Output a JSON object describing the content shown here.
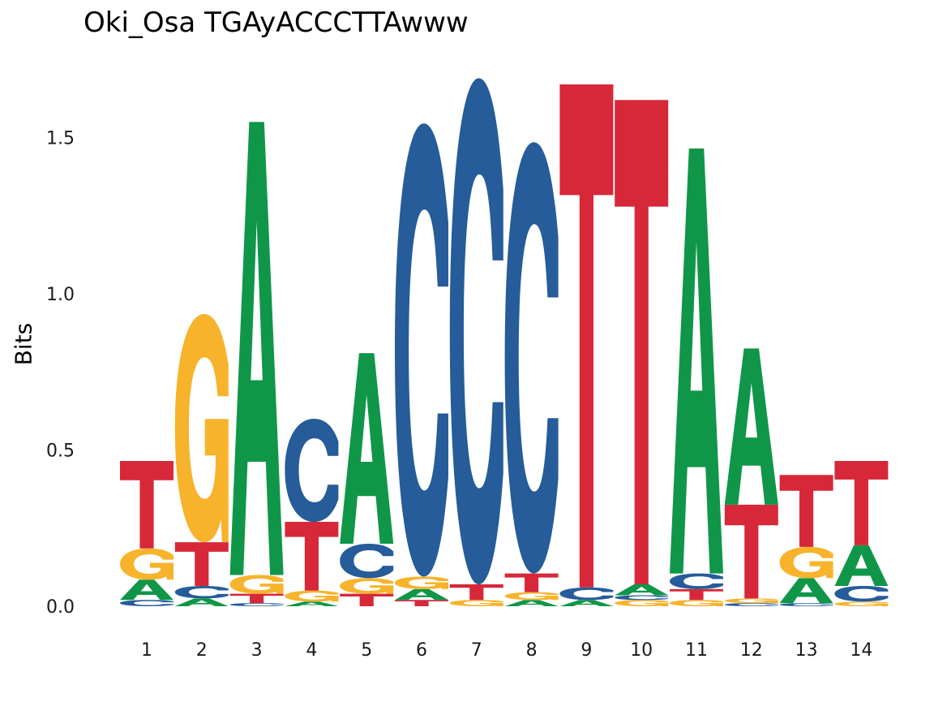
{
  "title": "Oki_Osa TGAyACCCTTAwww",
  "chart_data": {
    "type": "sequence-logo",
    "title": "Oki_Osa TGAyACCCTTAwww",
    "xlabel": "",
    "ylabel": "Bits",
    "ylim": [
      0,
      1.75
    ],
    "yticks": [
      "0.0",
      "0.5",
      "1.0",
      "1.5"
    ],
    "ytick_values": [
      0,
      0.5,
      1.0,
      1.5
    ],
    "positions": [
      "1",
      "2",
      "3",
      "4",
      "5",
      "6",
      "7",
      "8",
      "9",
      "10",
      "11",
      "12",
      "13",
      "14"
    ],
    "grid": false,
    "colors": {
      "A": "#109648",
      "C": "#255C99",
      "G": "#F7B32B",
      "T": "#D62839"
    },
    "stacks": [
      [
        {
          "letter": "C",
          "height": 0.02
        },
        {
          "letter": "A",
          "height": 0.065
        },
        {
          "letter": "G",
          "height": 0.1
        },
        {
          "letter": "T",
          "height": 0.28
        }
      ],
      [
        {
          "letter": "A",
          "height": 0.025
        },
        {
          "letter": "C",
          "height": 0.04
        },
        {
          "letter": "T",
          "height": 0.14
        },
        {
          "letter": "G",
          "height": 0.73
        }
      ],
      [
        {
          "letter": "C",
          "height": 0.01
        },
        {
          "letter": "T",
          "height": 0.03
        },
        {
          "letter": "G",
          "height": 0.06
        },
        {
          "letter": "A",
          "height": 1.45
        }
      ],
      [
        {
          "letter": "A",
          "height": 0.015
        },
        {
          "letter": "G",
          "height": 0.035
        },
        {
          "letter": "T",
          "height": 0.22
        },
        {
          "letter": "C",
          "height": 0.33
        }
      ],
      [
        {
          "letter": "T",
          "height": 0.04
        },
        {
          "letter": "G",
          "height": 0.05
        },
        {
          "letter": "C",
          "height": 0.11
        },
        {
          "letter": "A",
          "height": 0.61
        }
      ],
      [
        {
          "letter": "T",
          "height": 0.02
        },
        {
          "letter": "A",
          "height": 0.035
        },
        {
          "letter": "G",
          "height": 0.04
        },
        {
          "letter": "C",
          "height": 1.45
        }
      ],
      [
        {
          "letter": "G",
          "height": 0.02
        },
        {
          "letter": "T",
          "height": 0.05
        },
        {
          "letter": "C",
          "height": 1.62
        }
      ],
      [
        {
          "letter": "A",
          "height": 0.02
        },
        {
          "letter": "G",
          "height": 0.025
        },
        {
          "letter": "T",
          "height": 0.06
        },
        {
          "letter": "C",
          "height": 1.38
        }
      ],
      [
        {
          "letter": "A",
          "height": 0.02
        },
        {
          "letter": "C",
          "height": 0.04
        },
        {
          "letter": "T",
          "height": 1.61
        }
      ],
      [
        {
          "letter": "G",
          "height": 0.02
        },
        {
          "letter": "C",
          "height": 0.015
        },
        {
          "letter": "A",
          "height": 0.035
        },
        {
          "letter": "T",
          "height": 1.55
        }
      ],
      [
        {
          "letter": "G",
          "height": 0.02
        },
        {
          "letter": "T",
          "height": 0.035
        },
        {
          "letter": "C",
          "height": 0.05
        },
        {
          "letter": "A",
          "height": 1.36
        }
      ],
      [
        {
          "letter": "C",
          "height": 0.01
        },
        {
          "letter": "G",
          "height": 0.015
        },
        {
          "letter": "T",
          "height": 0.3
        },
        {
          "letter": "A",
          "height": 0.5
        }
      ],
      [
        {
          "letter": "C",
          "height": 0.01
        },
        {
          "letter": "A",
          "height": 0.08
        },
        {
          "letter": "G",
          "height": 0.1
        },
        {
          "letter": "T",
          "height": 0.23
        }
      ],
      [
        {
          "letter": "G",
          "height": 0.015
        },
        {
          "letter": "C",
          "height": 0.05
        },
        {
          "letter": "A",
          "height": 0.13
        },
        {
          "letter": "T",
          "height": 0.27
        }
      ]
    ]
  }
}
